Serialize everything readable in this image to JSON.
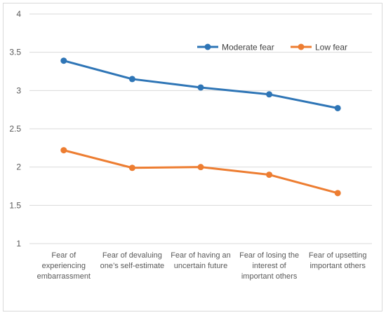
{
  "chart_data": {
    "type": "line",
    "categories": [
      [
        "Fear of",
        "experiencing",
        "embarrassment"
      ],
      [
        "Fear of devaluing",
        "one’s self-estimate"
      ],
      [
        "Fear of having an",
        "uncertain future"
      ],
      [
        "Fear of losing the",
        "interest of",
        "important others"
      ],
      [
        "Fear of upsetting",
        "important others"
      ]
    ],
    "series": [
      {
        "name": "Moderate fear",
        "color": "#2E75B6",
        "values": [
          3.39,
          3.15,
          3.04,
          2.95,
          2.77
        ]
      },
      {
        "name": "Low fear",
        "color": "#ED7D31",
        "values": [
          2.22,
          1.99,
          2.0,
          1.9,
          1.66
        ]
      }
    ],
    "ylim": [
      1,
      4
    ],
    "yticks": [
      "1",
      "1.5",
      "2",
      "2.5",
      "3",
      "3.5",
      "4"
    ],
    "grid": true,
    "legend_position": "top-right",
    "title": "",
    "xlabel": "",
    "ylabel": ""
  }
}
